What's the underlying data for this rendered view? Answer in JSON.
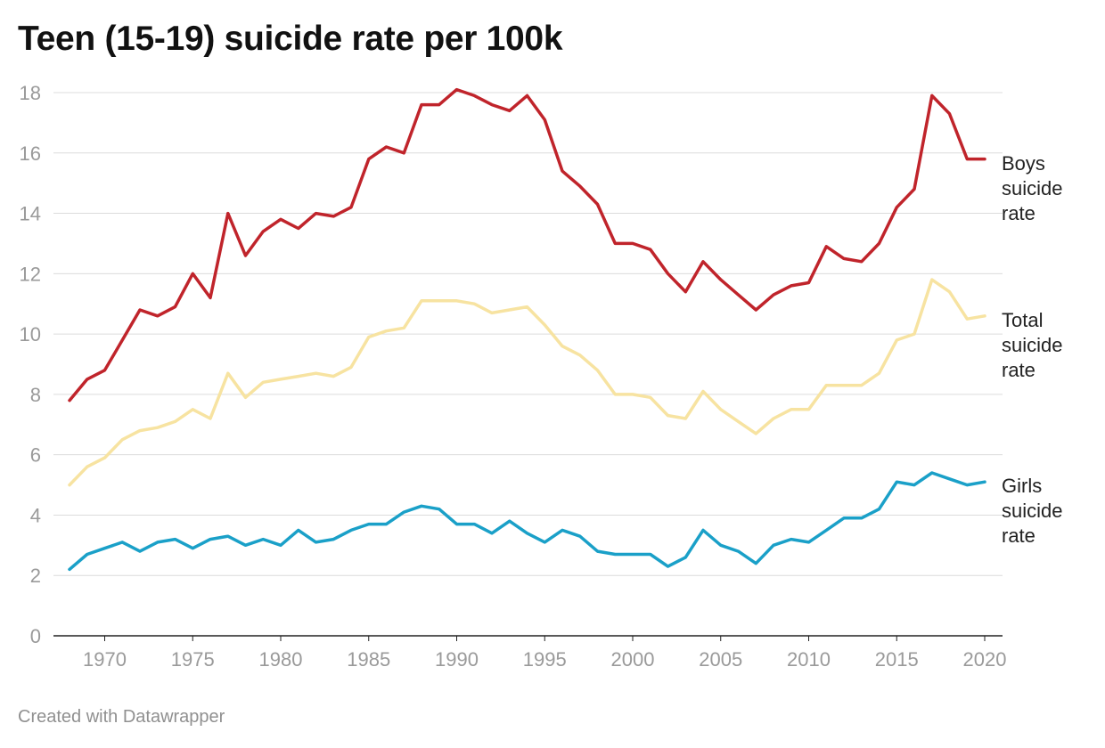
{
  "title": "Teen (15-19) suicide rate per 100k",
  "footer": "Created with Datawrapper",
  "colors": {
    "boys": "#c0242b",
    "total": "#f7e3a1",
    "girls": "#1aa0c8",
    "grid": "#dcdcdc",
    "axis": "#222222"
  },
  "chart_data": {
    "type": "line",
    "title": "Teen (15-19) suicide rate per 100k",
    "xlim": [
      1968,
      2020
    ],
    "ylim": [
      0,
      18
    ],
    "x_ticks": [
      1970,
      1975,
      1980,
      1985,
      1990,
      1995,
      2000,
      2005,
      2010,
      2015,
      2020
    ],
    "y_ticks": [
      0,
      2,
      4,
      6,
      8,
      10,
      12,
      14,
      16,
      18
    ],
    "grid": true,
    "x": [
      1968,
      1969,
      1970,
      1971,
      1972,
      1973,
      1974,
      1975,
      1976,
      1977,
      1978,
      1979,
      1980,
      1981,
      1982,
      1983,
      1984,
      1985,
      1986,
      1987,
      1988,
      1989,
      1990,
      1991,
      1992,
      1993,
      1994,
      1995,
      1996,
      1997,
      1998,
      1999,
      2000,
      2001,
      2002,
      2003,
      2004,
      2005,
      2006,
      2007,
      2008,
      2009,
      2010,
      2011,
      2012,
      2013,
      2014,
      2015,
      2016,
      2017,
      2018,
      2019,
      2020
    ],
    "series": [
      {
        "name": "Boys suicide rate",
        "label_lines": [
          "Boys",
          "suicide",
          "rate"
        ],
        "color": "#c0242b",
        "values": [
          7.8,
          8.5,
          8.8,
          9.8,
          10.8,
          10.6,
          10.9,
          12.0,
          11.2,
          14.0,
          12.6,
          13.4,
          13.8,
          13.5,
          14.0,
          13.9,
          14.2,
          15.8,
          16.2,
          16.0,
          17.6,
          17.6,
          18.1,
          17.9,
          17.6,
          17.4,
          17.9,
          17.1,
          15.4,
          14.9,
          14.3,
          13.0,
          13.0,
          12.8,
          12.0,
          11.4,
          12.4,
          11.8,
          11.3,
          10.8,
          11.3,
          11.6,
          11.7,
          12.9,
          12.5,
          12.4,
          13.0,
          14.2,
          14.8,
          17.9,
          17.3,
          15.8,
          15.8
        ]
      },
      {
        "name": "Total suicide rate",
        "label_lines": [
          "Total",
          "suicide",
          "rate"
        ],
        "color": "#f7e3a1",
        "values": [
          5.0,
          5.6,
          5.9,
          6.5,
          6.8,
          6.9,
          7.1,
          7.5,
          7.2,
          8.7,
          7.9,
          8.4,
          8.5,
          8.6,
          8.7,
          8.6,
          8.9,
          9.9,
          10.1,
          10.2,
          11.1,
          11.1,
          11.1,
          11.0,
          10.7,
          10.8,
          10.9,
          10.3,
          9.6,
          9.3,
          8.8,
          8.0,
          8.0,
          7.9,
          7.3,
          7.2,
          8.1,
          7.5,
          7.1,
          6.7,
          7.2,
          7.5,
          7.5,
          8.3,
          8.3,
          8.3,
          8.7,
          9.8,
          10.0,
          11.8,
          11.4,
          10.5,
          10.6
        ]
      },
      {
        "name": "Girls suicide rate",
        "label_lines": [
          "Girls",
          "suicide",
          "rate"
        ],
        "color": "#1aa0c8",
        "values": [
          2.2,
          2.7,
          2.9,
          3.1,
          2.8,
          3.1,
          3.2,
          2.9,
          3.2,
          3.3,
          3.0,
          3.2,
          3.0,
          3.5,
          3.1,
          3.2,
          3.5,
          3.7,
          3.7,
          4.1,
          4.3,
          4.2,
          3.7,
          3.7,
          3.4,
          3.8,
          3.4,
          3.1,
          3.5,
          3.3,
          2.8,
          2.7,
          2.7,
          2.7,
          2.3,
          2.6,
          3.5,
          3.0,
          2.8,
          2.4,
          3.0,
          3.2,
          3.1,
          3.5,
          3.9,
          3.9,
          4.2,
          5.1,
          5.0,
          5.4,
          5.2,
          5.0,
          5.1
        ]
      }
    ]
  }
}
